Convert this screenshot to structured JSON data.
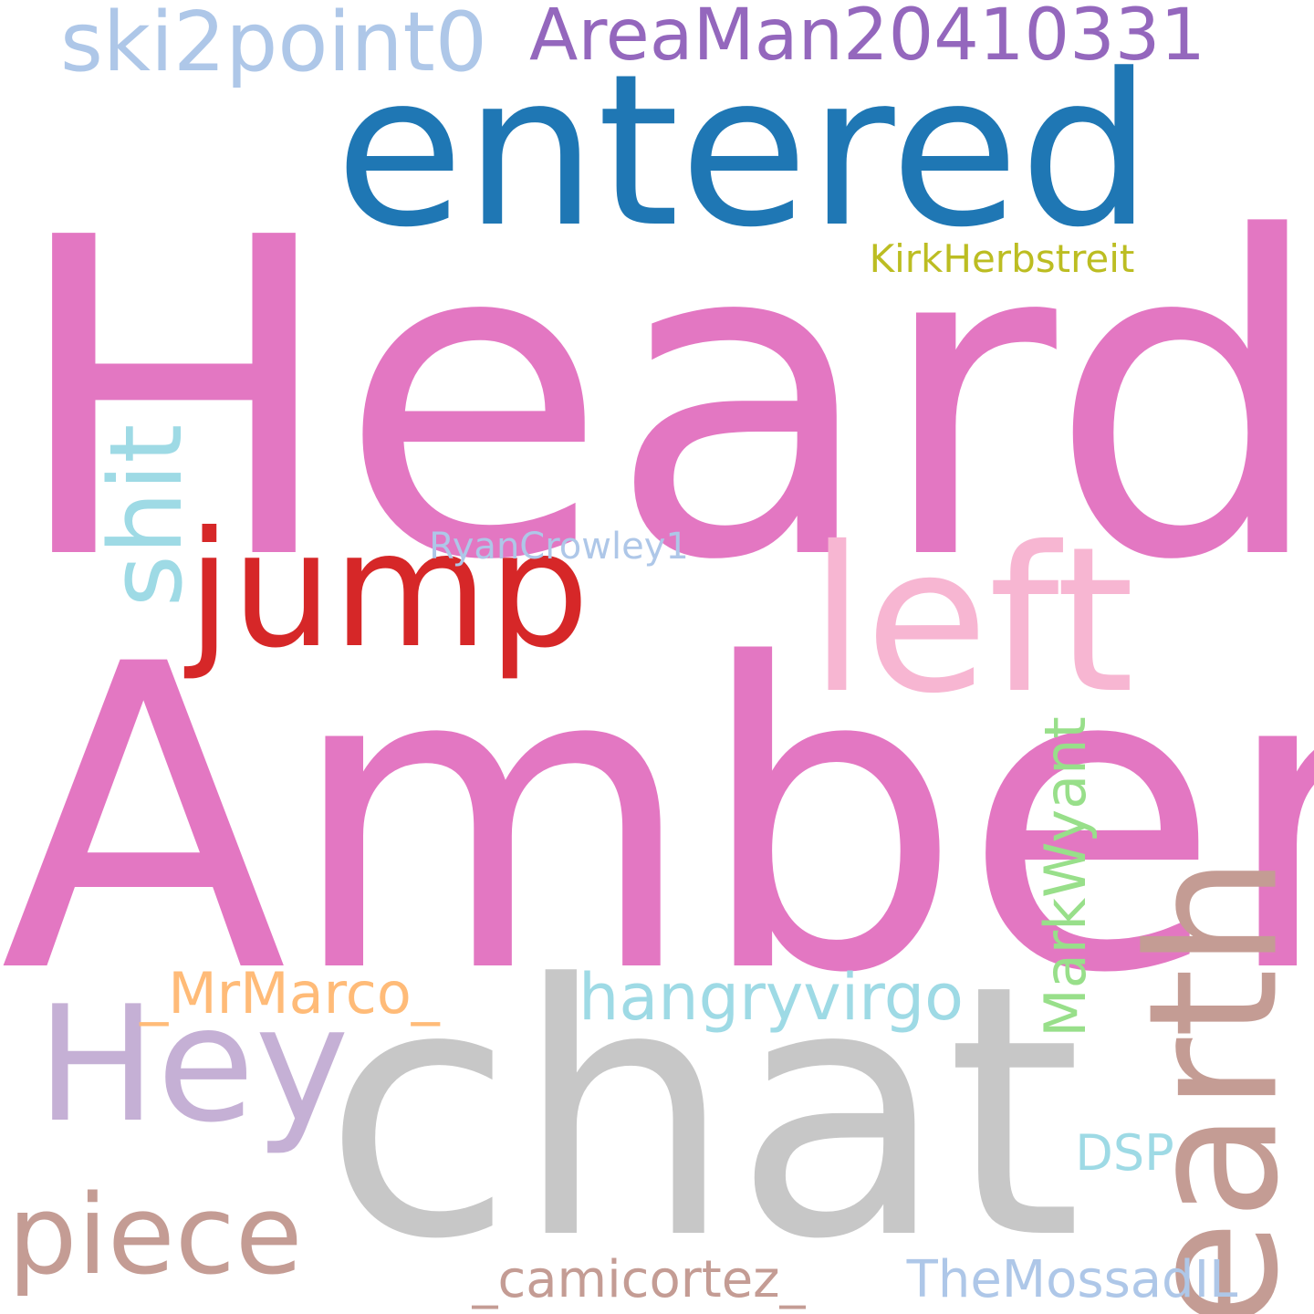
{
  "words": [
    {
      "text": "Heard",
      "color": "#e377c2"
    },
    {
      "text": "Amber",
      "color": "#e377c2"
    },
    {
      "text": "entered",
      "color": "#1f77b4"
    },
    {
      "text": "chat",
      "color": "#c7c7c7"
    },
    {
      "text": "left",
      "color": "#f7b6d2"
    },
    {
      "text": "jump",
      "color": "#d62728"
    },
    {
      "text": "earth",
      "color": "#c49c94"
    },
    {
      "text": "Hey",
      "color": "#c5b0d5"
    },
    {
      "text": "shit",
      "color": "#9edae5"
    },
    {
      "text": "piece",
      "color": "#c49c94"
    },
    {
      "text": "ski2point0",
      "color": "#aec7e8"
    },
    {
      "text": "AreaMan20410331",
      "color": "#9467bd"
    },
    {
      "text": "hangryvirgo",
      "color": "#9edae5"
    },
    {
      "text": "MarkWyant",
      "color": "#98df8a"
    },
    {
      "text": "_MrMarco_",
      "color": "#ffbb78"
    },
    {
      "text": "KirkHerbstreit",
      "color": "#bcbd22"
    },
    {
      "text": "RyanCrowley1",
      "color": "#aec7e8"
    },
    {
      "text": "DSP",
      "color": "#9edae5"
    },
    {
      "text": "_camicortez_",
      "color": "#c49c94"
    },
    {
      "text": "TheMossadIL",
      "color": "#aec7e8"
    }
  ]
}
